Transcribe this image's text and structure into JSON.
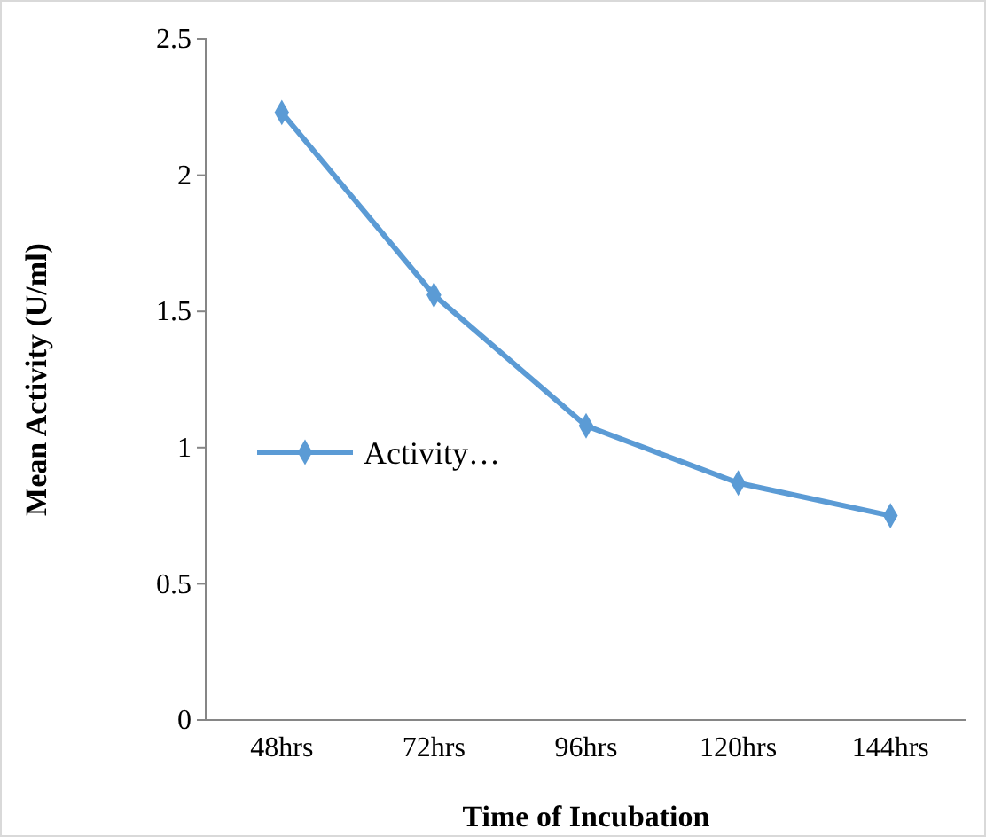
{
  "chart_data": {
    "type": "line",
    "xlabel": "Time of Incubation",
    "ylabel": "Mean Activity (U/ml)",
    "categories": [
      "48hrs",
      "72hrs",
      "96hrs",
      "120hrs",
      "144hrs"
    ],
    "series": [
      {
        "name": "Activity…",
        "color": "#5b9bd5",
        "values": [
          2.23,
          1.56,
          1.08,
          0.87,
          0.75
        ]
      }
    ],
    "ylim": [
      0,
      2.5
    ],
    "yticks": [
      0,
      {
        "value": 0.5,
        "label": "0.5"
      },
      1,
      {
        "value": 1.5,
        "label": "1.5"
      },
      2,
      {
        "value": 2.5,
        "label": "2.5"
      }
    ],
    "grid": false,
    "legend": "left",
    "marker": "diamond",
    "line_style": "solid"
  }
}
